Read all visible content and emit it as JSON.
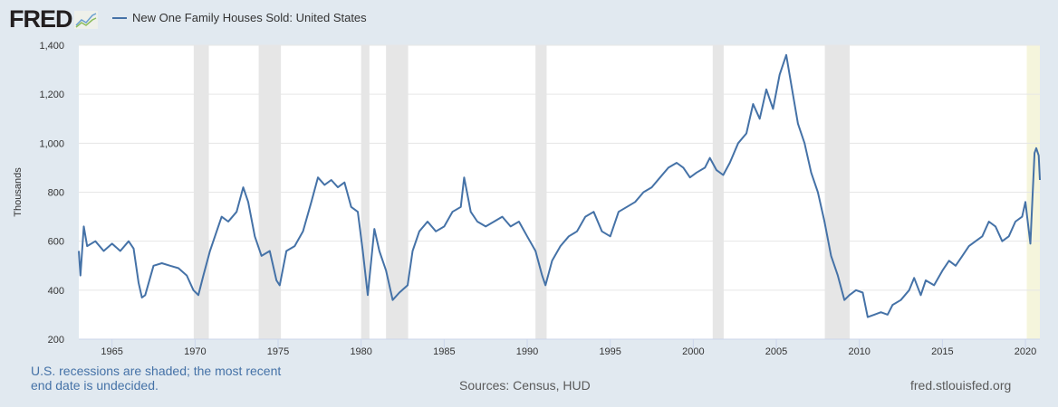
{
  "header": {
    "logo": "FRED",
    "logo_icon": "line-chart-icon"
  },
  "footer": {
    "note": "U.S. recessions are shaded; the most recent end date is undecided.",
    "sources": "Sources: Census, HUD",
    "site": "fred.stlouisfed.org"
  },
  "colors": {
    "line": "#4572a7",
    "recession": "#e6e6e6",
    "recession_undecided": "#f5f5dc",
    "plot_bg": "#ffffff",
    "page_bg": "#e1e9f0"
  },
  "chart_data": {
    "type": "line",
    "title": "",
    "ylabel": "Thousands",
    "xlabel": "",
    "ylim": [
      200,
      1400
    ],
    "xlim": [
      1963.0,
      2020.87
    ],
    "yticks": [
      200,
      400,
      600,
      800,
      1000,
      1200,
      1400
    ],
    "ytick_labels": [
      "200",
      "400",
      "600",
      "800",
      "1,000",
      "1,200",
      "1,400"
    ],
    "xticks": [
      "1965",
      "1970",
      "1975",
      "1980",
      "1985",
      "1990",
      "1995",
      "2000",
      "2005",
      "2010",
      "2015",
      "2020"
    ],
    "grid": true,
    "legend_placement": "top-left",
    "series": [
      {
        "name": "New One Family Houses Sold: United States",
        "x": [
          1963.0,
          1963.1,
          1963.3,
          1963.5,
          1964.0,
          1964.5,
          1965.0,
          1965.5,
          1966.0,
          1966.3,
          1966.6,
          1966.8,
          1967.0,
          1967.5,
          1968.0,
          1968.5,
          1969.0,
          1969.5,
          1969.9,
          1970.2,
          1970.5,
          1970.9,
          1971.2,
          1971.6,
          1972.0,
          1972.5,
          1972.9,
          1973.2,
          1973.6,
          1974.0,
          1974.5,
          1974.9,
          1975.1,
          1975.5,
          1976.0,
          1976.5,
          1977.0,
          1977.4,
          1977.8,
          1978.2,
          1978.6,
          1979.0,
          1979.4,
          1979.8,
          1980.1,
          1980.4,
          1980.8,
          1981.1,
          1981.5,
          1981.9,
          1982.3,
          1982.8,
          1983.1,
          1983.5,
          1984.0,
          1984.5,
          1985.0,
          1985.5,
          1986.0,
          1986.2,
          1986.6,
          1987.0,
          1987.5,
          1988.0,
          1988.5,
          1989.0,
          1989.5,
          1990.0,
          1990.5,
          1990.9,
          1991.1,
          1991.5,
          1992.0,
          1992.5,
          1993.0,
          1993.5,
          1994.0,
          1994.5,
          1995.0,
          1995.5,
          1996.0,
          1996.5,
          1997.0,
          1997.5,
          1998.0,
          1998.5,
          1999.0,
          1999.4,
          1999.8,
          2000.2,
          2000.7,
          2001.0,
          2001.4,
          2001.8,
          2002.2,
          2002.7,
          2003.2,
          2003.6,
          2004.0,
          2004.4,
          2004.8,
          2005.2,
          2005.6,
          2005.9,
          2006.3,
          2006.7,
          2007.1,
          2007.5,
          2007.9,
          2008.3,
          2008.7,
          2009.1,
          2009.4,
          2009.8,
          2010.2,
          2010.5,
          2010.9,
          2011.3,
          2011.7,
          2012.0,
          2012.5,
          2013.0,
          2013.3,
          2013.7,
          2014.0,
          2014.5,
          2015.0,
          2015.4,
          2015.8,
          2016.2,
          2016.6,
          2017.0,
          2017.4,
          2017.8,
          2018.2,
          2018.6,
          2019.0,
          2019.4,
          2019.8,
          2020.0,
          2020.3,
          2020.55,
          2020.65,
          2020.8,
          2020.87
        ],
        "values": [
          560,
          460,
          660,
          580,
          600,
          560,
          590,
          560,
          600,
          570,
          430,
          370,
          380,
          500,
          510,
          500,
          490,
          460,
          400,
          380,
          460,
          560,
          620,
          700,
          680,
          720,
          820,
          760,
          620,
          540,
          560,
          440,
          420,
          560,
          580,
          640,
          760,
          860,
          830,
          850,
          820,
          840,
          740,
          720,
          560,
          380,
          650,
          560,
          480,
          360,
          390,
          420,
          560,
          640,
          680,
          640,
          660,
          720,
          740,
          860,
          720,
          680,
          660,
          680,
          700,
          660,
          680,
          620,
          560,
          460,
          420,
          520,
          580,
          620,
          640,
          700,
          720,
          640,
          620,
          720,
          740,
          760,
          800,
          820,
          860,
          900,
          920,
          900,
          860,
          880,
          900,
          940,
          890,
          870,
          920,
          1000,
          1040,
          1160,
          1100,
          1220,
          1140,
          1280,
          1360,
          1240,
          1080,
          1000,
          880,
          800,
          680,
          540,
          460,
          360,
          380,
          400,
          390,
          290,
          300,
          310,
          300,
          340,
          360,
          400,
          450,
          380,
          440,
          420,
          480,
          520,
          500,
          540,
          580,
          600,
          620,
          680,
          660,
          600,
          620,
          680,
          700,
          760,
          590,
          960,
          980,
          950,
          850
        ]
      }
    ],
    "recessions": [
      [
        1969.92,
        1970.83
      ],
      [
        1973.83,
        1975.17
      ],
      [
        1980.0,
        1980.5
      ],
      [
        1981.5,
        1982.83
      ],
      [
        1990.5,
        1991.17
      ],
      [
        2001.17,
        2001.83
      ],
      [
        2007.92,
        2009.42
      ]
    ],
    "recession_undecided": [
      [
        2020.08,
        2020.87
      ]
    ]
  }
}
